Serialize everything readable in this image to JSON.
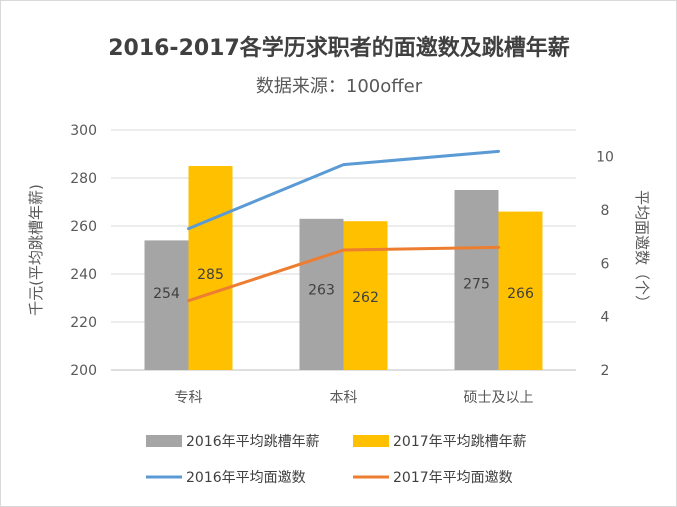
{
  "chart_data": {
    "type": "bar",
    "title": "2016-2017各学历求职者的面邀数及跳槽年薪",
    "subtitle": "数据来源：100offer",
    "categories": [
      "专科",
      "本科",
      "硕士及以上"
    ],
    "ylabel": "千元(平均跳槽年薪)",
    "y2label": "平均面邀数（个）",
    "ylim": [
      200,
      300
    ],
    "y2lim": [
      2,
      11
    ],
    "yticks": [
      "200",
      "220",
      "240",
      "260",
      "280",
      "300"
    ],
    "y2ticks": [
      "2",
      "4",
      "6",
      "8",
      "10"
    ],
    "grid": true,
    "legend_position": "bottom",
    "bar_series": [
      {
        "name": "2016年平均跳槽年薪",
        "values": [
          254,
          263,
          275
        ],
        "labels": [
          "254",
          "263",
          "275"
        ],
        "color": "#a5a5a5"
      },
      {
        "name": "2017年平均跳槽年薪",
        "values": [
          285,
          262,
          266
        ],
        "labels": [
          "285",
          "262",
          "266"
        ],
        "color": "#ffc000"
      }
    ],
    "line_series": [
      {
        "name": "2016年平均面邀数",
        "values": [
          7.3,
          9.7,
          10.2
        ],
        "color": "#5b9bd5"
      },
      {
        "name": "2017年平均面邀数",
        "values": [
          4.6,
          6.5,
          6.6
        ],
        "color": "#ed7d31"
      }
    ]
  }
}
